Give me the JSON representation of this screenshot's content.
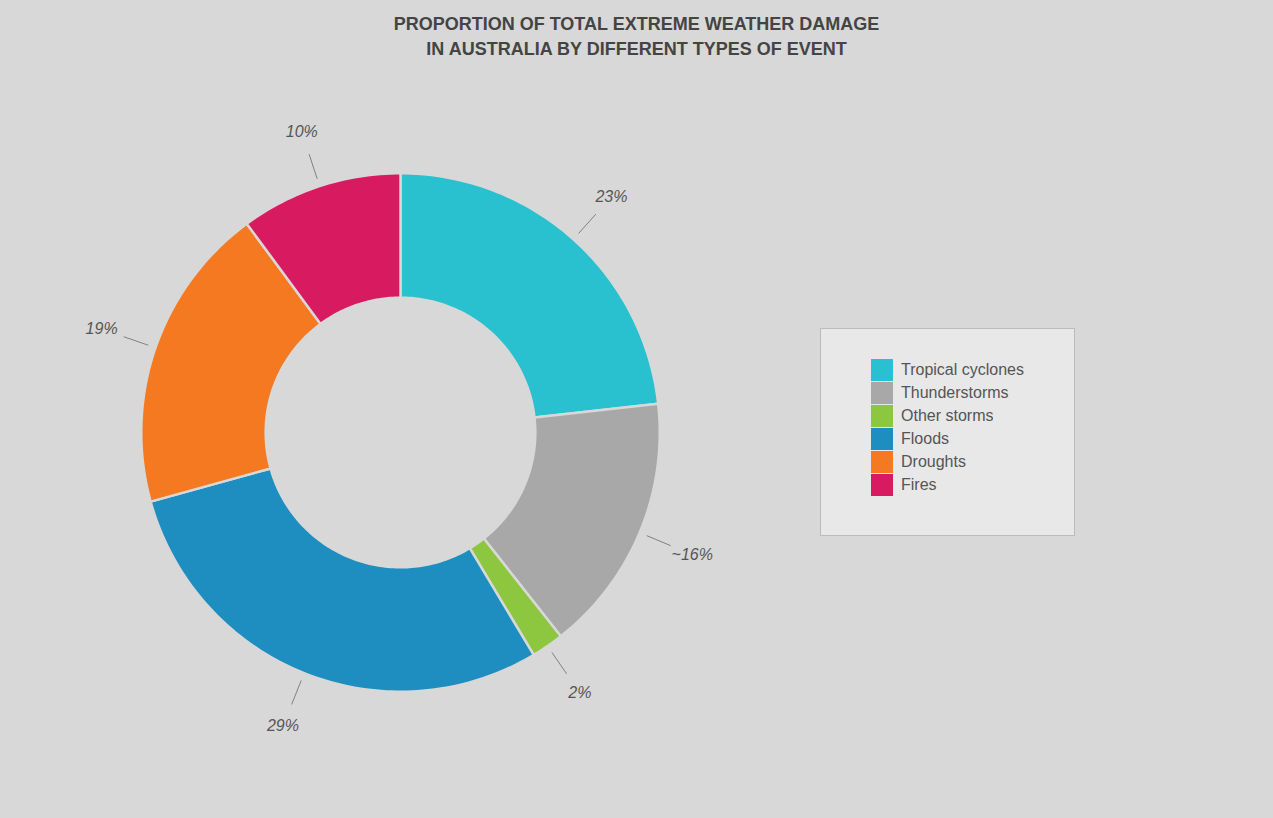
{
  "chart_data": {
    "type": "pie",
    "title": "PROPORTION OF TOTAL EXTREME WEATHER DAMAGE\nIN AUSTRALIA BY DIFFERENT TYPES OF EVENT",
    "categories": [
      "Tropical cyclones",
      "Thunderstorms",
      "Other storms",
      "Floods",
      "Droughts",
      "Fires"
    ],
    "values": [
      23,
      16,
      2,
      29,
      19,
      10
    ],
    "value_labels": [
      "23%",
      "~16%",
      "2%",
      "29%",
      "19%",
      "10%"
    ],
    "colors": [
      "#29C0D0",
      "#A8A8A8",
      "#8DC63F",
      "#1D8EBF",
      "#F47920",
      "#D81B60"
    ],
    "data_labels": true,
    "legend": "right"
  }
}
